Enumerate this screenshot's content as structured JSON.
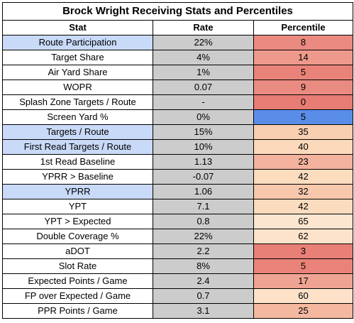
{
  "title": "Brock Wright Receiving Stats and Percentiles",
  "headers": [
    "Stat",
    "Rate",
    "Percentile"
  ],
  "colors": {
    "highlight_stat": "#c9daf8",
    "rate_bg": "#cccccc",
    "plain_bg": "#ffffff"
  },
  "rows": [
    {
      "stat": "Route Participation",
      "rate": "22%",
      "percentile": "8",
      "stat_highlight": true,
      "pct_color": "#ea8a80"
    },
    {
      "stat": "Target Share",
      "rate": "4%",
      "percentile": "14",
      "stat_highlight": false,
      "pct_color": "#ed9a8d"
    },
    {
      "stat": "Air Yard Share",
      "rate": "1%",
      "percentile": "5",
      "stat_highlight": false,
      "pct_color": "#e98379"
    },
    {
      "stat": "WOPR",
      "rate": "0.07",
      "percentile": "9",
      "stat_highlight": false,
      "pct_color": "#ea8b81"
    },
    {
      "stat": "Splash Zone Targets / Route",
      "rate": "-",
      "percentile": "0",
      "stat_highlight": false,
      "pct_color": "#e67c73"
    },
    {
      "stat": "Screen Yard %",
      "rate": "0%",
      "percentile": "5",
      "stat_highlight": false,
      "pct_color": "#5a8de8"
    },
    {
      "stat": "Targets / Route",
      "rate": "15%",
      "percentile": "35",
      "stat_highlight": true,
      "pct_color": "#f9cfb1"
    },
    {
      "stat": "First Read Targets / Route",
      "rate": "10%",
      "percentile": "40",
      "stat_highlight": true,
      "pct_color": "#fbd9ba"
    },
    {
      "stat": "1st Read Baseline",
      "rate": "1.13",
      "percentile": "23",
      "stat_highlight": false,
      "pct_color": "#f2b29e"
    },
    {
      "stat": "YPRR > Baseline",
      "rate": "-0.07",
      "percentile": "42",
      "stat_highlight": false,
      "pct_color": "#fbdcbe"
    },
    {
      "stat": "YPRR",
      "rate": "1.06",
      "percentile": "32",
      "stat_highlight": true,
      "pct_color": "#f7c8ac"
    },
    {
      "stat": "YPT",
      "rate": "7.1",
      "percentile": "42",
      "stat_highlight": false,
      "pct_color": "#fbdcbe"
    },
    {
      "stat": "YPT > Expected",
      "rate": "0.8",
      "percentile": "65",
      "stat_highlight": false,
      "pct_color": "#fde6cf"
    },
    {
      "stat": "Double Coverage %",
      "rate": "22%",
      "percentile": "62",
      "stat_highlight": false,
      "pct_color": "#fde3cb"
    },
    {
      "stat": "aDOT",
      "rate": "2.2",
      "percentile": "3",
      "stat_highlight": false,
      "pct_color": "#e88077"
    },
    {
      "stat": "Slot Rate",
      "rate": "8%",
      "percentile": "5",
      "stat_highlight": false,
      "pct_color": "#e98379"
    },
    {
      "stat": "Expected Points / Game",
      "rate": "2.4",
      "percentile": "17",
      "stat_highlight": false,
      "pct_color": "#efa493"
    },
    {
      "stat": "FP over Expected / Game",
      "rate": "0.7",
      "percentile": "60",
      "stat_highlight": false,
      "pct_color": "#fde2c9"
    },
    {
      "stat": "PPR Points / Game",
      "rate": "3.1",
      "percentile": "25",
      "stat_highlight": false,
      "pct_color": "#f4b8a1"
    }
  ]
}
